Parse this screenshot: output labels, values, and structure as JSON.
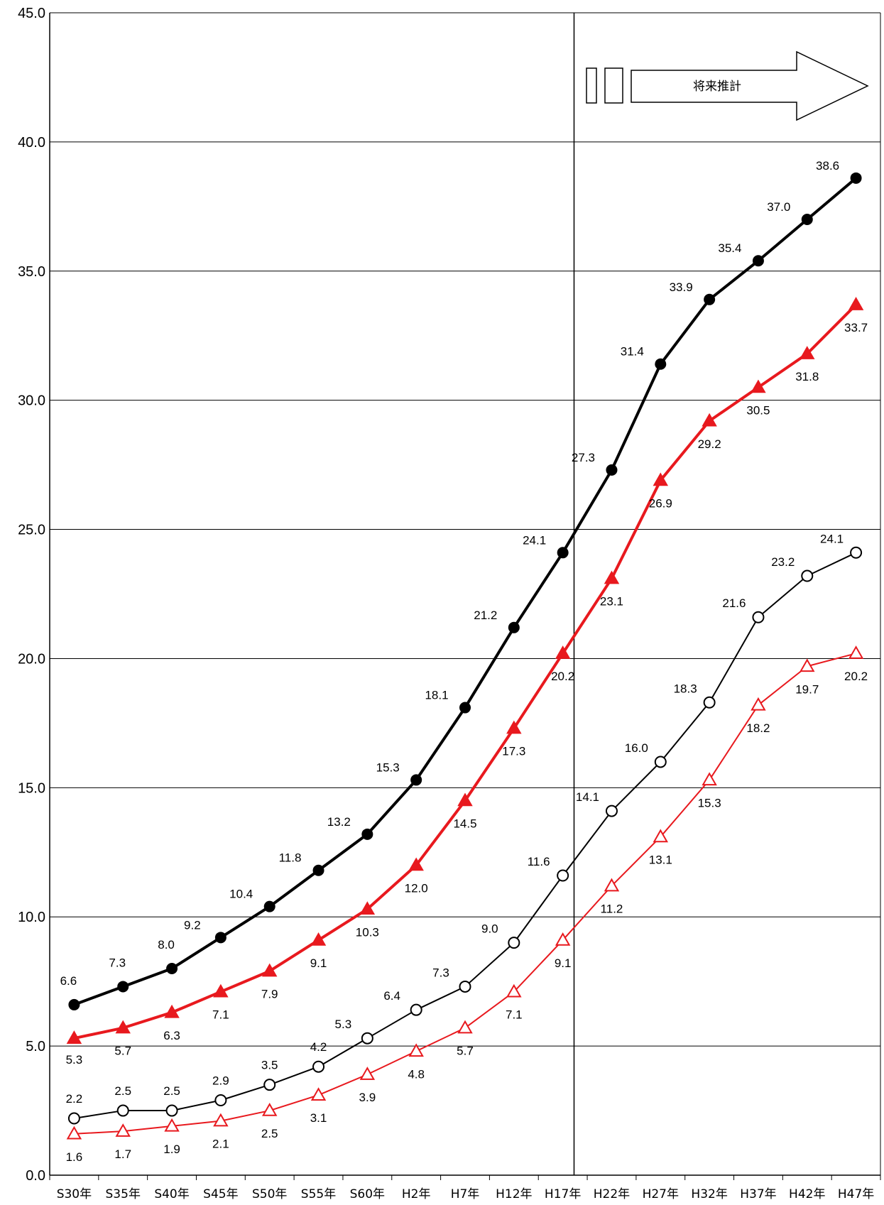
{
  "chart_data": {
    "type": "line",
    "title": "",
    "xlabel": "",
    "ylabel": "",
    "ylim": [
      0,
      45
    ],
    "y_ticks": [
      "0.0",
      "5.0",
      "10.0",
      "15.0",
      "20.0",
      "25.0",
      "30.0",
      "35.0",
      "40.0",
      "45.0"
    ],
    "categories": [
      "S30年",
      "S35年",
      "S40年",
      "S45年",
      "S50年",
      "S55年",
      "S60年",
      "H2年",
      "H7年",
      "H12年",
      "H17年",
      "H22年",
      "H27年",
      "H32年",
      "H37年",
      "H42年",
      "H47年"
    ],
    "grid": "horizontal",
    "legend": "none",
    "projection_annotation": {
      "text": "将来推計",
      "starts_after_category": "H17年",
      "arrow_direction": "right"
    },
    "series": [
      {
        "values": [
          6.6,
          7.3,
          8.0,
          9.2,
          10.4,
          11.8,
          13.2,
          15.3,
          18.1,
          21.2,
          24.1,
          27.3,
          31.4,
          33.9,
          35.4,
          37.0,
          38.6
        ],
        "labels": [
          "6.6",
          "7.3",
          "8.0",
          "9.2",
          "10.4",
          "11.8",
          "13.2",
          "15.3",
          "18.1",
          "21.2",
          "24.1",
          "27.3",
          "31.4",
          "33.9",
          "35.4",
          "37.0",
          "38.6"
        ],
        "color": "#000000",
        "marker": "filled-circle",
        "line_style": "thick"
      },
      {
        "values": [
          5.3,
          5.7,
          6.3,
          7.1,
          7.9,
          9.1,
          10.3,
          12.0,
          14.5,
          17.3,
          20.2,
          23.1,
          26.9,
          29.2,
          30.5,
          31.8,
          33.7
        ],
        "labels": [
          "5.3",
          "5.7",
          "6.3",
          "7.1",
          "7.9",
          "9.1",
          "10.3",
          "12.0",
          "14.5",
          "17.3",
          "20.2",
          "23.1",
          "26.9",
          "29.2",
          "30.5",
          "31.8",
          "33.7"
        ],
        "color": "#e8191e",
        "marker": "filled-triangle",
        "line_style": "thick"
      },
      {
        "values": [
          2.2,
          2.5,
          2.5,
          2.9,
          3.5,
          4.2,
          5.3,
          6.4,
          7.3,
          9.0,
          11.6,
          14.1,
          16.0,
          18.3,
          21.6,
          23.2,
          24.1
        ],
        "labels": [
          "2.2",
          "2.5",
          "2.5",
          "2.9",
          "3.5",
          "4.2",
          "5.3",
          "6.4",
          "7.3",
          "9.0",
          "11.6",
          "14.1",
          "16.0",
          "18.3",
          "21.6",
          "23.2",
          "24.1"
        ],
        "color": "#000000",
        "marker": "open-circle",
        "line_style": "thin"
      },
      {
        "values": [
          1.6,
          1.7,
          1.9,
          2.1,
          2.5,
          3.1,
          3.9,
          4.8,
          5.7,
          7.1,
          9.1,
          11.2,
          13.1,
          15.3,
          18.2,
          19.7,
          20.2
        ],
        "labels": [
          "1.6",
          "1.7",
          "1.9",
          "2.1",
          "2.5",
          "3.1",
          "3.9",
          "4.8",
          "5.7",
          "7.1",
          "9.1",
          "11.2",
          "13.1",
          "15.3",
          "18.2",
          "19.7",
          "20.2"
        ],
        "color": "#e8191e",
        "marker": "open-triangle",
        "line_style": "thin"
      }
    ]
  }
}
